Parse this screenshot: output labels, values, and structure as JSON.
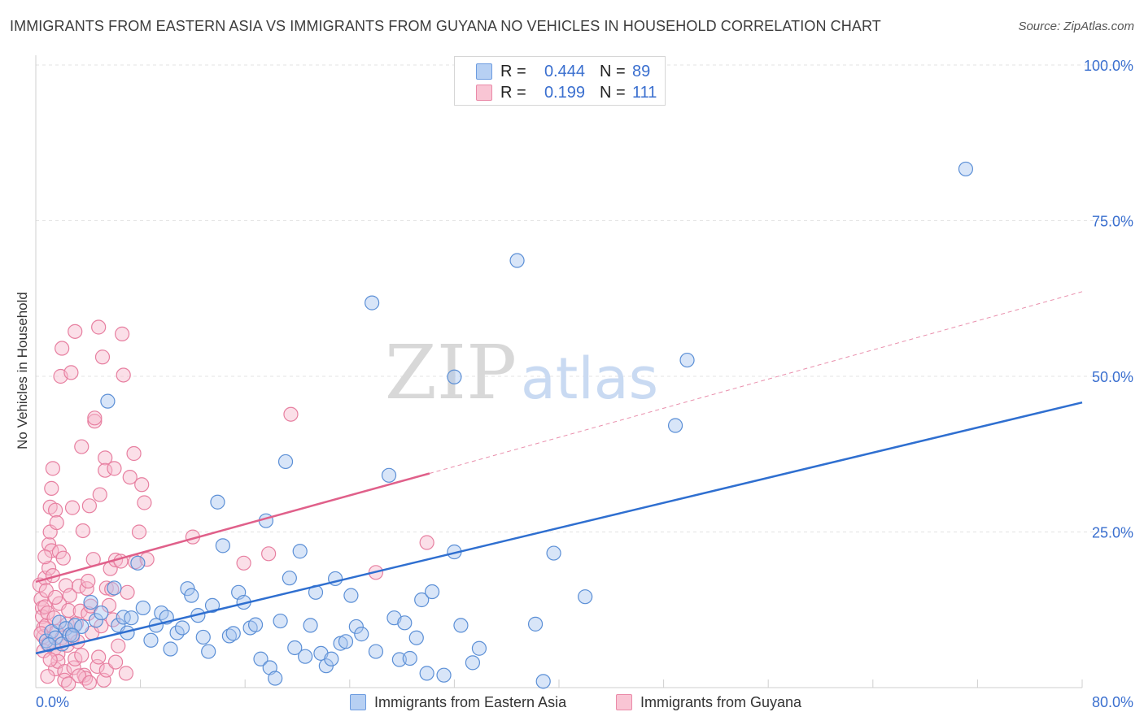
{
  "title": "IMMIGRANTS FROM EASTERN ASIA VS IMMIGRANTS FROM GUYANA NO VEHICLES IN HOUSEHOLD CORRELATION CHART",
  "source": "Source: ZipAtlas.com",
  "watermark": {
    "part1": "ZIP",
    "part2": "atlas"
  },
  "legend": {
    "series1": {
      "r_label": "R =",
      "r_value": "0.444",
      "n_label": "N =",
      "n_value": "89"
    },
    "series2": {
      "r_label": "R =",
      "r_value": "0.199",
      "n_label": "N =",
      "n_value": "111"
    }
  },
  "colors": {
    "blue_fill": "#a8c6ef",
    "blue_stroke": "#5b8fd6",
    "blue_line": "#2f6fd0",
    "pink_fill": "#f6b8cb",
    "pink_stroke": "#e77fa0",
    "pink_line": "#e0608a",
    "grid": "#e3e3e3",
    "axis_text": "#3a6fcf"
  },
  "chart_data": {
    "type": "scatter",
    "title": "IMMIGRANTS FROM EASTERN ASIA VS IMMIGRANTS FROM GUYANA NO VEHICLES IN HOUSEHOLD CORRELATION CHART",
    "xlabel": "",
    "ylabel": "No Vehicles in Household",
    "xlim": [
      0,
      80
    ],
    "ylim": [
      0,
      102
    ],
    "x_tick_labels": [
      "0.0%",
      "80.0%"
    ],
    "y_ticks": [
      25,
      50,
      75,
      100
    ],
    "y_tick_labels": [
      "25.0%",
      "50.0%",
      "75.0%",
      "100.0%"
    ],
    "series": [
      {
        "name": "Immigrants from Eastern Asia",
        "color": "blue",
        "r": 0.444,
        "n": 89,
        "trend": {
          "x": [
            0,
            80
          ],
          "y": [
            5.5,
            45.8
          ],
          "style": "solid"
        },
        "points": [
          [
            0.8,
            7.5
          ],
          [
            1.2,
            9.0
          ],
          [
            1.5,
            8.0
          ],
          [
            1.8,
            10.5
          ],
          [
            2.0,
            7.0
          ],
          [
            2.3,
            9.5
          ],
          [
            2.6,
            8.5
          ],
          [
            3.0,
            10.0
          ],
          [
            3.5,
            9.8
          ],
          [
            4.2,
            13.7
          ],
          [
            4.6,
            10.8
          ],
          [
            5.0,
            12.0
          ],
          [
            5.5,
            46.0
          ],
          [
            6.0,
            16.0
          ],
          [
            6.3,
            10.0
          ],
          [
            6.7,
            11.3
          ],
          [
            7.0,
            8.8
          ],
          [
            7.3,
            11.2
          ],
          [
            7.8,
            20.0
          ],
          [
            8.2,
            12.8
          ],
          [
            8.8,
            7.6
          ],
          [
            9.2,
            10.0
          ],
          [
            9.6,
            12.0
          ],
          [
            10.0,
            11.3
          ],
          [
            10.3,
            6.2
          ],
          [
            10.8,
            8.8
          ],
          [
            11.2,
            9.6
          ],
          [
            11.6,
            15.9
          ],
          [
            11.9,
            14.8
          ],
          [
            12.4,
            11.6
          ],
          [
            12.8,
            8.1
          ],
          [
            13.2,
            5.8
          ],
          [
            13.5,
            13.2
          ],
          [
            13.9,
            29.8
          ],
          [
            14.3,
            22.8
          ],
          [
            14.8,
            8.3
          ],
          [
            15.1,
            8.7
          ],
          [
            15.5,
            15.3
          ],
          [
            15.9,
            13.7
          ],
          [
            16.4,
            9.6
          ],
          [
            16.8,
            10.1
          ],
          [
            17.2,
            4.6
          ],
          [
            17.6,
            26.8
          ],
          [
            17.9,
            3.2
          ],
          [
            18.3,
            1.5
          ],
          [
            18.7,
            10.7
          ],
          [
            19.1,
            36.3
          ],
          [
            19.4,
            17.6
          ],
          [
            19.8,
            6.4
          ],
          [
            20.2,
            21.9
          ],
          [
            20.6,
            5.0
          ],
          [
            21.0,
            10.0
          ],
          [
            21.4,
            15.3
          ],
          [
            21.8,
            5.5
          ],
          [
            22.2,
            3.5
          ],
          [
            22.6,
            4.6
          ],
          [
            22.9,
            17.5
          ],
          [
            23.3,
            7.1
          ],
          [
            23.7,
            7.4
          ],
          [
            24.1,
            14.8
          ],
          [
            24.5,
            9.8
          ],
          [
            24.9,
            8.6
          ],
          [
            25.7,
            61.8
          ],
          [
            26.0,
            5.8
          ],
          [
            27.0,
            34.1
          ],
          [
            27.4,
            11.2
          ],
          [
            27.8,
            4.5
          ],
          [
            28.2,
            10.4
          ],
          [
            28.6,
            4.7
          ],
          [
            29.1,
            8.0
          ],
          [
            29.5,
            14.1
          ],
          [
            29.9,
            2.3
          ],
          [
            30.3,
            15.4
          ],
          [
            31.2,
            2.0
          ],
          [
            32.0,
            21.8
          ],
          [
            32.5,
            10.0
          ],
          [
            33.4,
            4.0
          ],
          [
            33.9,
            6.3
          ],
          [
            36.8,
            68.6
          ],
          [
            38.2,
            10.2
          ],
          [
            38.8,
            1.0
          ],
          [
            39.6,
            21.6
          ],
          [
            42.0,
            14.6
          ],
          [
            48.9,
            42.1
          ],
          [
            49.8,
            52.6
          ],
          [
            71.1,
            83.3
          ],
          [
            32.0,
            49.9
          ],
          [
            1.0,
            6.9
          ],
          [
            2.8,
            8.4
          ]
        ]
      },
      {
        "name": "Immigrants from Guyana",
        "color": "pink",
        "r": 0.199,
        "n": 111,
        "trend": {
          "x": [
            0,
            30.1
          ],
          "y": [
            17.0,
            34.4
          ],
          "style": "solid"
        },
        "trend_extension": {
          "x": [
            30.1,
            80
          ],
          "y": [
            34.4,
            63.6
          ],
          "style": "dashed"
        },
        "points": [
          [
            0.3,
            16.5
          ],
          [
            0.4,
            14.2
          ],
          [
            0.5,
            12.8
          ],
          [
            0.5,
            11.4
          ],
          [
            0.6,
            9.6
          ],
          [
            0.6,
            8.2
          ],
          [
            0.7,
            17.6
          ],
          [
            0.7,
            13.0
          ],
          [
            0.8,
            15.6
          ],
          [
            0.8,
            10.0
          ],
          [
            0.9,
            7.0
          ],
          [
            0.9,
            12.0
          ],
          [
            1.0,
            19.2
          ],
          [
            1.0,
            23.0
          ],
          [
            1.1,
            29.0
          ],
          [
            1.1,
            25.0
          ],
          [
            1.2,
            32.0
          ],
          [
            1.2,
            22.0
          ],
          [
            1.3,
            18.0
          ],
          [
            1.4,
            11.2
          ],
          [
            1.4,
            6.2
          ],
          [
            1.5,
            3.0
          ],
          [
            1.5,
            28.5
          ],
          [
            1.6,
            26.5
          ],
          [
            1.6,
            9.0
          ],
          [
            1.7,
            5.4
          ],
          [
            1.7,
            4.2
          ],
          [
            1.8,
            21.8
          ],
          [
            1.8,
            13.5
          ],
          [
            1.9,
            50.0
          ],
          [
            2.0,
            54.5
          ],
          [
            2.0,
            8.0
          ],
          [
            2.1,
            20.8
          ],
          [
            2.2,
            2.6
          ],
          [
            2.2,
            1.2
          ],
          [
            2.3,
            16.4
          ],
          [
            2.4,
            10.2
          ],
          [
            2.4,
            6.8
          ],
          [
            2.5,
            12.4
          ],
          [
            2.6,
            14.8
          ],
          [
            2.7,
            50.6
          ],
          [
            2.8,
            28.9
          ],
          [
            2.8,
            8.0
          ],
          [
            2.9,
            3.2
          ],
          [
            3.0,
            4.6
          ],
          [
            3.0,
            57.2
          ],
          [
            3.1,
            10.3
          ],
          [
            3.2,
            7.4
          ],
          [
            3.3,
            16.3
          ],
          [
            3.4,
            12.3
          ],
          [
            3.5,
            5.2
          ],
          [
            3.5,
            38.7
          ],
          [
            3.6,
            25.2
          ],
          [
            3.7,
            2.0
          ],
          [
            3.8,
            1.5
          ],
          [
            3.9,
            15.9
          ],
          [
            4.0,
            11.9
          ],
          [
            4.0,
            17.1
          ],
          [
            4.1,
            29.2
          ],
          [
            4.2,
            13.1
          ],
          [
            4.3,
            8.8
          ],
          [
            4.4,
            20.6
          ],
          [
            4.5,
            42.8
          ],
          [
            4.5,
            43.3
          ],
          [
            4.7,
            3.4
          ],
          [
            4.8,
            57.9
          ],
          [
            4.8,
            4.9
          ],
          [
            4.9,
            31.0
          ],
          [
            5.0,
            9.9
          ],
          [
            5.1,
            53.1
          ],
          [
            5.2,
            1.2
          ],
          [
            5.3,
            36.9
          ],
          [
            5.3,
            34.9
          ],
          [
            5.4,
            16.0
          ],
          [
            5.6,
            13.2
          ],
          [
            5.7,
            19.1
          ],
          [
            5.8,
            15.8
          ],
          [
            5.9,
            10.9
          ],
          [
            6.0,
            35.2
          ],
          [
            6.1,
            20.5
          ],
          [
            6.3,
            6.7
          ],
          [
            6.5,
            20.3
          ],
          [
            6.6,
            56.8
          ],
          [
            6.7,
            50.2
          ],
          [
            6.9,
            2.3
          ],
          [
            7.0,
            15.3
          ],
          [
            7.2,
            33.8
          ],
          [
            7.5,
            37.6
          ],
          [
            7.6,
            20.2
          ],
          [
            7.9,
            25.0
          ],
          [
            8.1,
            32.6
          ],
          [
            8.3,
            29.7
          ],
          [
            8.5,
            20.6
          ],
          [
            12.0,
            24.2
          ],
          [
            15.9,
            20.0
          ],
          [
            17.8,
            21.5
          ],
          [
            19.5,
            43.9
          ],
          [
            26.0,
            18.5
          ],
          [
            29.9,
            23.3
          ],
          [
            1.3,
            35.2
          ],
          [
            0.4,
            8.7
          ],
          [
            0.6,
            5.9
          ],
          [
            0.9,
            1.8
          ],
          [
            1.1,
            4.5
          ],
          [
            2.5,
            0.6
          ],
          [
            3.3,
            1.9
          ],
          [
            4.1,
            0.8
          ],
          [
            5.4,
            2.8
          ],
          [
            6.1,
            4.1
          ],
          [
            0.7,
            21.0
          ],
          [
            1.5,
            14.5
          ]
        ]
      }
    ]
  },
  "bottom_legend": {
    "series1_label": "Immigrants from Eastern Asia",
    "series2_label": "Immigrants from Guyana"
  }
}
